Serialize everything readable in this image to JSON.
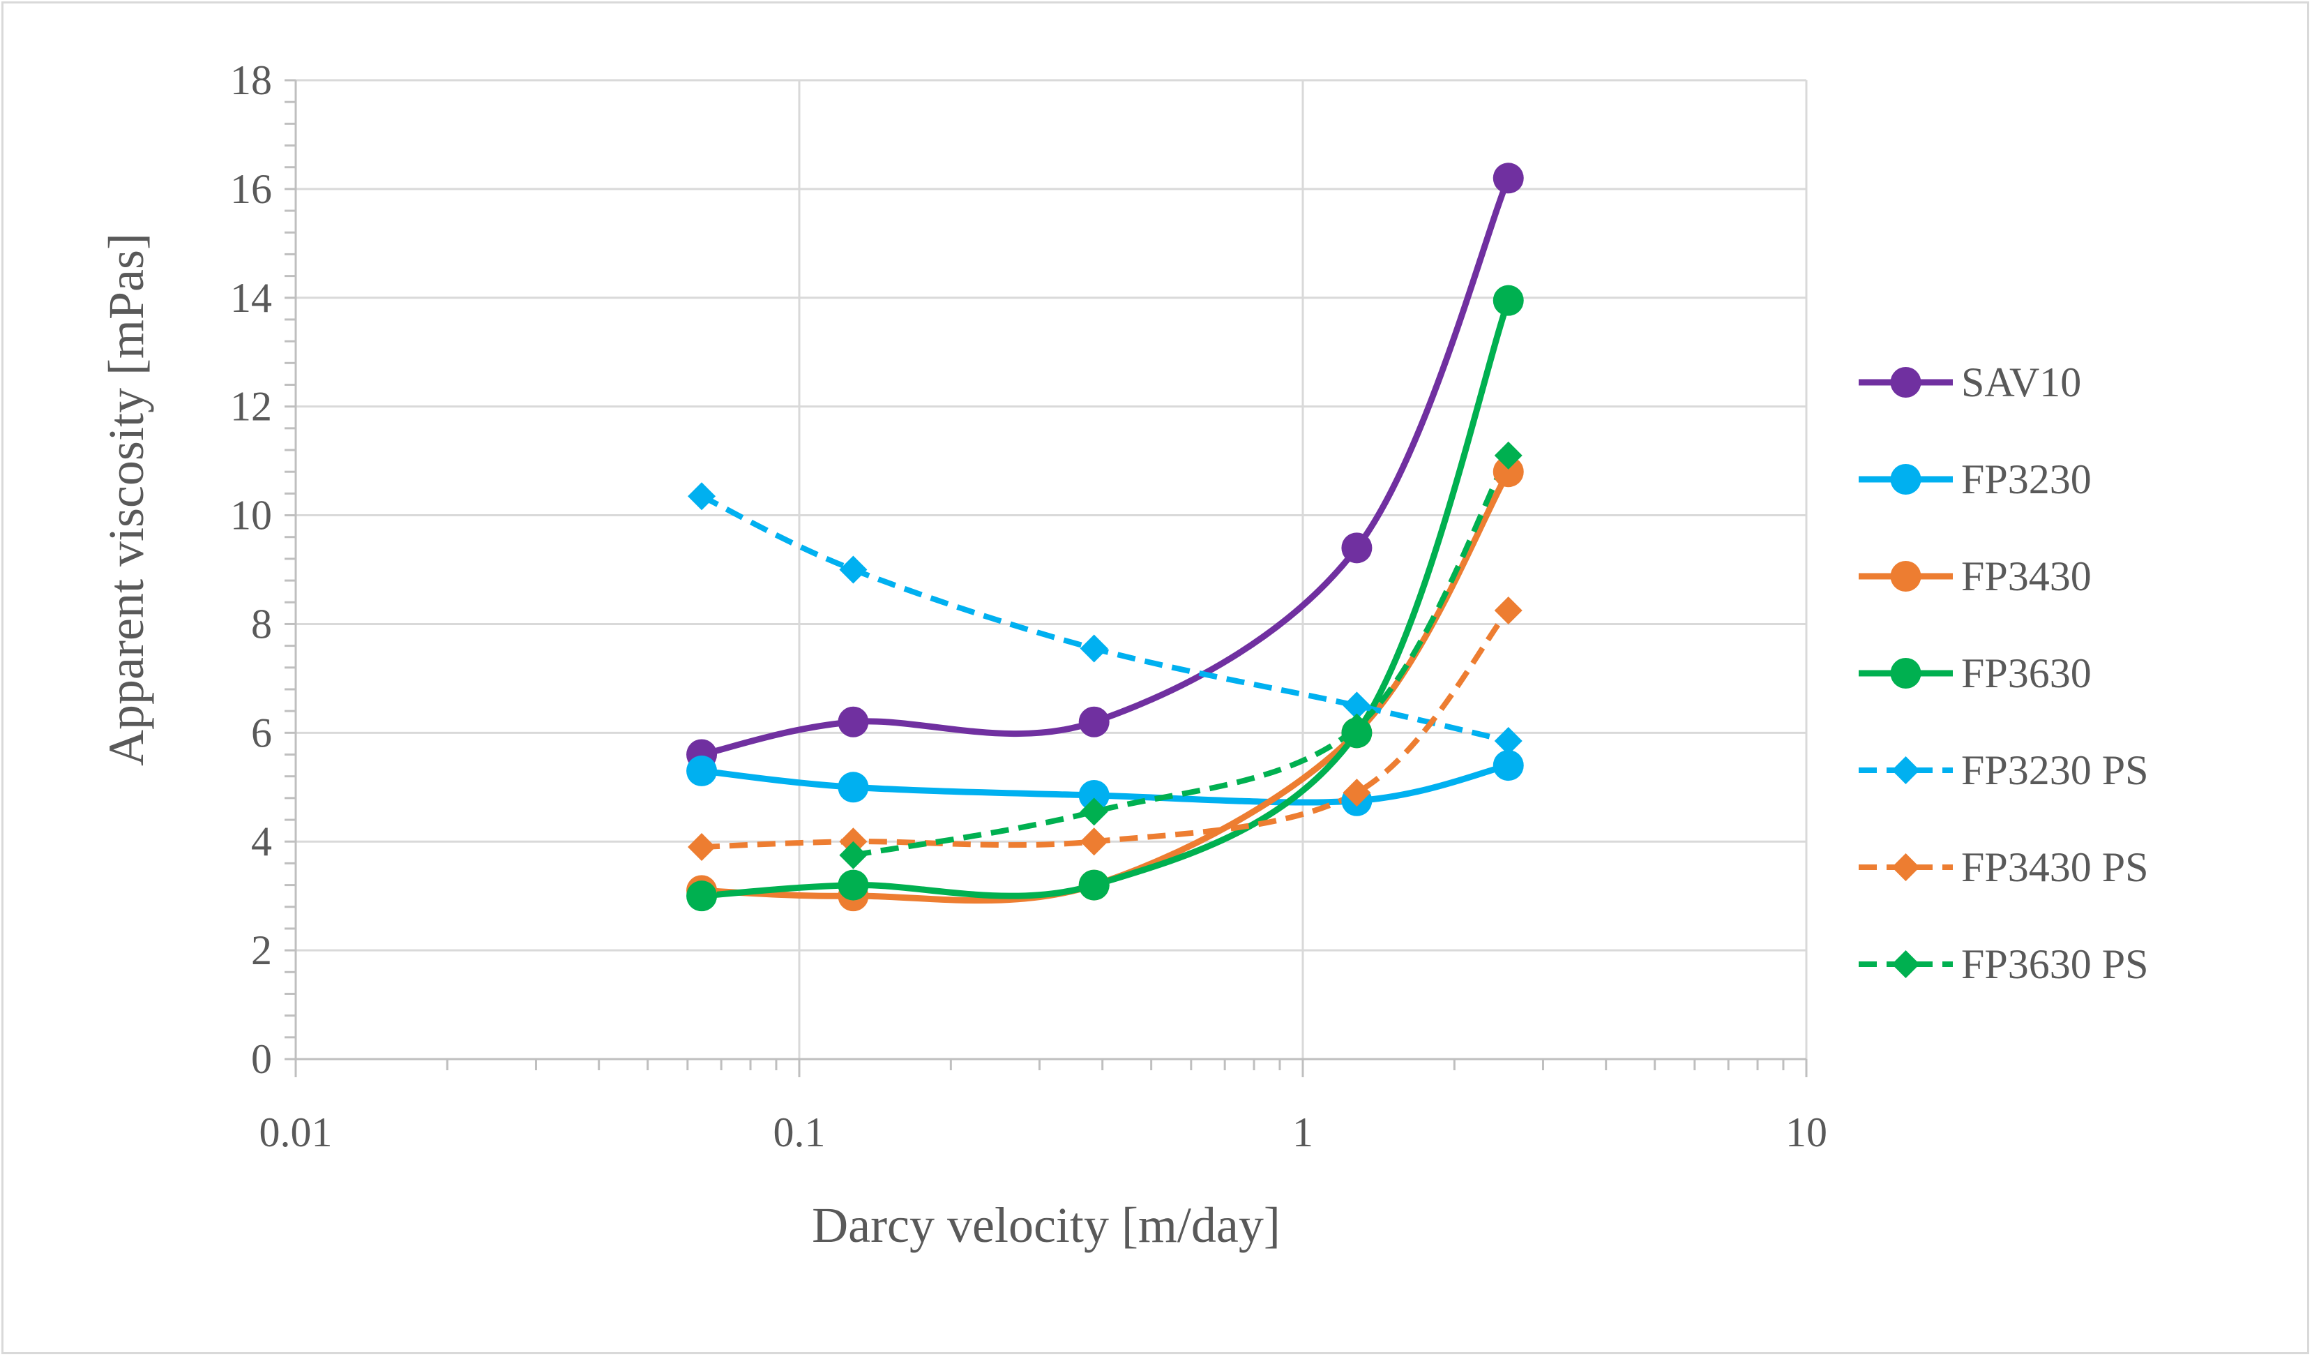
{
  "chart_data": {
    "type": "line",
    "title": "",
    "xlabel": "Darcy velocity [m/day]",
    "ylabel": "Apparent viscosity [mPas]",
    "xscale": "log",
    "xlim": [
      0.01,
      10
    ],
    "ylim": [
      0,
      18
    ],
    "x_ticks": [
      0.01,
      0.1,
      1,
      10
    ],
    "x_tick_labels": [
      "0.01",
      "0.1",
      "1",
      "10"
    ],
    "y_ticks": [
      0,
      2,
      4,
      6,
      8,
      10,
      12,
      14,
      16,
      18
    ],
    "y_tick_labels": [
      "0",
      "2",
      "4",
      "6",
      "8",
      "10",
      "12",
      "14",
      "16",
      "18"
    ],
    "grid": true,
    "legend_position": "right",
    "series": [
      {
        "name": "SAV10",
        "color": "#7030a0",
        "style": "solid",
        "marker": "circle",
        "x": [
          0.064,
          0.128,
          0.385,
          1.28,
          2.56
        ],
        "y": [
          5.6,
          6.2,
          6.2,
          9.4,
          16.2
        ]
      },
      {
        "name": "FP3230",
        "color": "#00b0f0",
        "style": "solid",
        "marker": "circle",
        "x": [
          0.064,
          0.128,
          0.385,
          1.28,
          2.56
        ],
        "y": [
          5.3,
          5.0,
          4.85,
          4.75,
          5.4
        ]
      },
      {
        "name": "FP3430",
        "color": "#ed7d31",
        "style": "solid",
        "marker": "circle",
        "x": [
          0.064,
          0.128,
          0.385,
          1.28,
          2.56
        ],
        "y": [
          3.1,
          3.0,
          3.2,
          6.0,
          10.8
        ]
      },
      {
        "name": "FP3630",
        "color": "#00b050",
        "style": "solid",
        "marker": "circle",
        "x": [
          0.064,
          0.128,
          0.385,
          1.28,
          2.56
        ],
        "y": [
          3.0,
          3.2,
          3.2,
          6.0,
          13.95
        ]
      },
      {
        "name": "FP3230 PS",
        "color": "#00b0f0",
        "style": "dashed",
        "marker": "diamond",
        "x": [
          0.064,
          0.128,
          0.385,
          1.28,
          2.56
        ],
        "y": [
          10.35,
          9.0,
          7.55,
          6.5,
          5.85
        ]
      },
      {
        "name": "FP3430 PS",
        "color": "#ed7d31",
        "style": "dashed",
        "marker": "diamond",
        "x": [
          0.064,
          0.128,
          0.385,
          1.28,
          2.56
        ],
        "y": [
          3.9,
          4.0,
          4.0,
          4.9,
          8.25
        ]
      },
      {
        "name": "FP3630 PS",
        "color": "#00b050",
        "style": "dashed",
        "marker": "diamond",
        "x": [
          0.128,
          0.385,
          1.28,
          2.56
        ],
        "y": [
          3.75,
          4.55,
          6.1,
          11.1
        ]
      }
    ]
  }
}
